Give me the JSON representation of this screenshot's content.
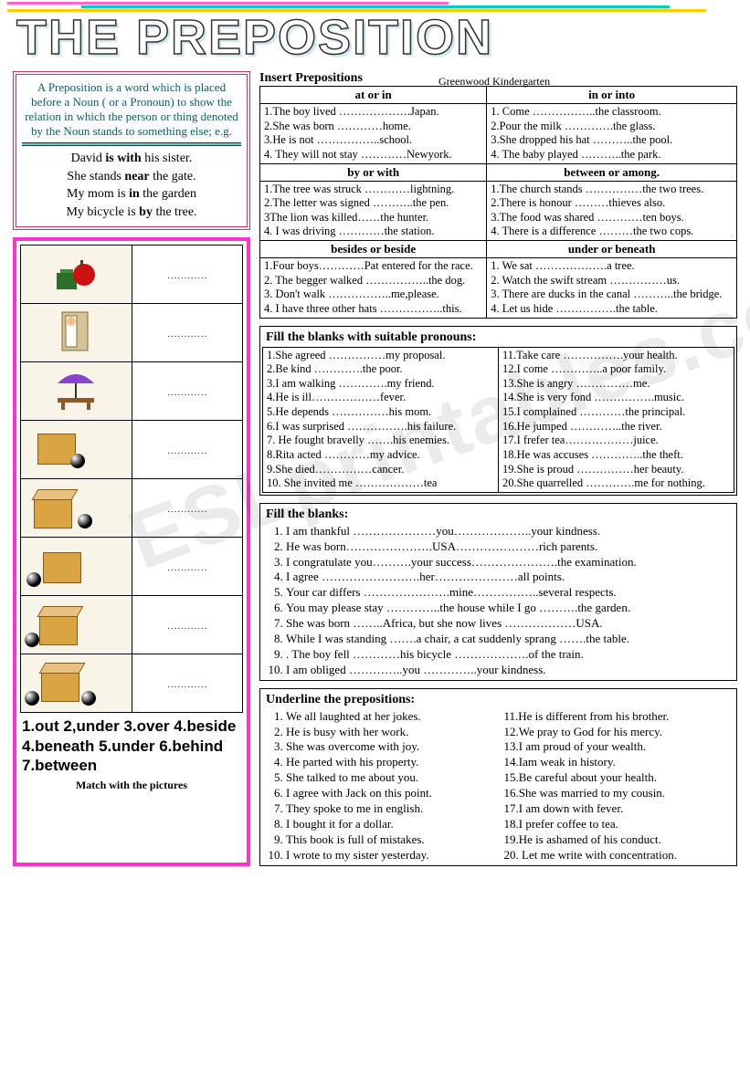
{
  "title": "THE PREPOSITION",
  "subtitle": "Greenwood Kindergarten",
  "definition": "A Preposition is a word which is placed before a Noun ( or a Pronoun) to show the relation in which the person or thing denoted by the Noun stands to something else; e.g.",
  "examples": [
    "David <b>is with</b> his sister.",
    "She stands <b>near</b> the gate.",
    "My mom is <b>in</b> the garden",
    "My bicycle is <b>by</b> the tree."
  ],
  "insert_heading": "Insert Prepositions",
  "pair_blocks": [
    {
      "left_head": "at   or   in",
      "right_head": "in   or   into",
      "left": [
        "1.The boy lived ……………….Japan.",
        "2.She was born …………home.",
        "3.He is not ……………..school.",
        "4. They will not stay …………Newyork."
      ],
      "right": [
        "1. Come ……………..the classroom.",
        "2.Pour the milk ………….the glass.",
        "3.She dropped his hat ………..the pool.",
        "4. The baby played ………..the park."
      ]
    },
    {
      "left_head": "by   or   with",
      "right_head": "between   or   among.",
      "left": [
        "1.The tree was struck …………lightning.",
        "2.The letter was signed ………..the pen.",
        "3The lion was killed……the hunter.",
        "4. I was driving …………the station."
      ],
      "right": [
        "1.The church stands ……………the two trees.",
        "2.There is honour ………thieves also.",
        "3.The food was shared …………ten boys.",
        "4. There is a difference ………the two cops."
      ]
    },
    {
      "left_head": "besides      or   beside",
      "right_head": "under   or   beneath",
      "left": [
        "1.Four boys…………Pat  entered for the race.",
        "2. The begger walked ……………..the dog.",
        "3. Don't walk ……………..me,please.",
        "4. I have three other hats ……………..this."
      ],
      "right": [
        "1. We sat ……………….a tree.",
        "2. Watch the swift stream ……………us.",
        "3. There are ducks in the canal ………..the bridge.",
        "4. Let us hide …………….the table."
      ]
    }
  ],
  "blanks1_heading": "Fill the blanks with suitable pronouns:",
  "blanks1_left": [
    "1.She agreed ……………my proposal.",
    "2.Be kind ………….the poor.",
    "3.I am walking ………….my friend.",
    "4.He is ill………………fever.",
    "5.He depends ……………his mom.",
    "6.I was surprised …………….his failure.",
    "7. He fought bravelly …….his enemies.",
    "8.Rita acted …………my advice.",
    "9.She died……………cancer.",
    "10. She invited me ………………tea"
  ],
  "blanks1_right": [
    "11.Take care …………….your health.",
    "12.I come …………..a poor family.",
    "13.She is angry ……………me.",
    "14.She is very fond …………….music.",
    "15.I complained …………the principal.",
    "16.He jumped …………..the river.",
    "17.I frefer tea………………juice.",
    "18.He was accuses …………..the theft.",
    "19.She is proud ……………her beauty.",
    "20.She quarrelled ………….me for nothing."
  ],
  "blanks2_heading": "Fill the blanks:",
  "blanks2": [
    "I am thankful …………………you………………..your kindness.",
    "He was born………………….USA…………………rich parents.",
    "I congratulate you……….your success………………….the examination.",
    "I agree …………………….her…………………all points.",
    "Your car differs ………………….mine……………..several respects.",
    "You may please stay …………..the house while I go ……….the garden.",
    "She was born ……..Africa, but she now lives ………………USA.",
    "While I was standing …….a chair, a cat suddenly  sprang …….the table.",
    ". The boy fell …………his bicycle ……………….of the train.",
    "I am obliged …………..you …………..your kindness."
  ],
  "under_heading": "Underline the prepositions:",
  "under_left": [
    "We all laughted at her jokes.",
    "He is busy with her work.",
    " She was overcome with joy.",
    "He parted with his property.",
    "She talked to me about you.",
    "I agree with Jack on this point.",
    "They spoke to me in english.",
    "I bought it for a dollar.",
    "This book is full of mistakes.",
    "I wrote to my sister yesterday."
  ],
  "under_right": [
    "11.He is different from his brother.",
    "12.We pray to God for his mercy.",
    "13.I am proud of your wealth.",
    "14.Iam weak in history.",
    "15.Be careful about your health.",
    "16.She was married to my cousin.",
    "17.I am down with fever.",
    "18.I prefer coffee to tea.",
    "19.He is ashamed of his conduct.",
    "20. Let me write with concentration."
  ],
  "match_words": "1.out    2,under 3.over  4.beside 4.beneath 5.under 6.behind 7.between",
  "match_caption": "Match with the pictures",
  "watermark": "ESLprintables.com",
  "dots": "…………"
}
